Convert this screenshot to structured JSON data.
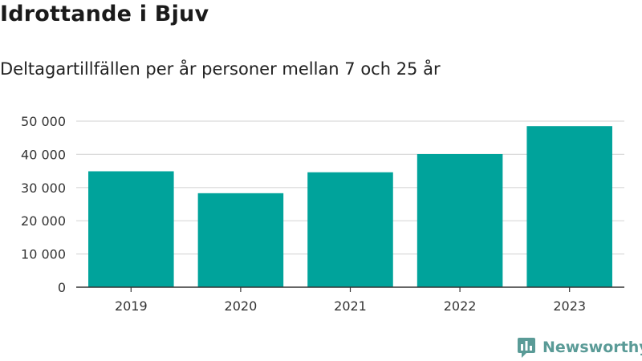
{
  "header": {
    "title": "Idrottande i Bjuv",
    "subtitle": "Deltagartillfällen per år personer mellan 7 och 25 år"
  },
  "colors": {
    "bar": "#00a39b",
    "grid": "#d9d9d9",
    "axis": "#333333",
    "brand": "#5a9b97"
  },
  "chart_data": {
    "type": "bar",
    "categories": [
      "2019",
      "2020",
      "2021",
      "2022",
      "2023"
    ],
    "values": [
      34900,
      28300,
      34600,
      40100,
      48500
    ],
    "ylim": [
      0,
      50000
    ],
    "yticks": [
      0,
      10000,
      20000,
      30000,
      40000,
      50000
    ],
    "ytick_labels": [
      "0",
      "10 000",
      "20 000",
      "30 000",
      "40 000",
      "50 000"
    ],
    "grid": true,
    "legend": "none"
  },
  "branding": {
    "name": "Newsworthy",
    "icon": "newsworthy-logo-icon"
  }
}
